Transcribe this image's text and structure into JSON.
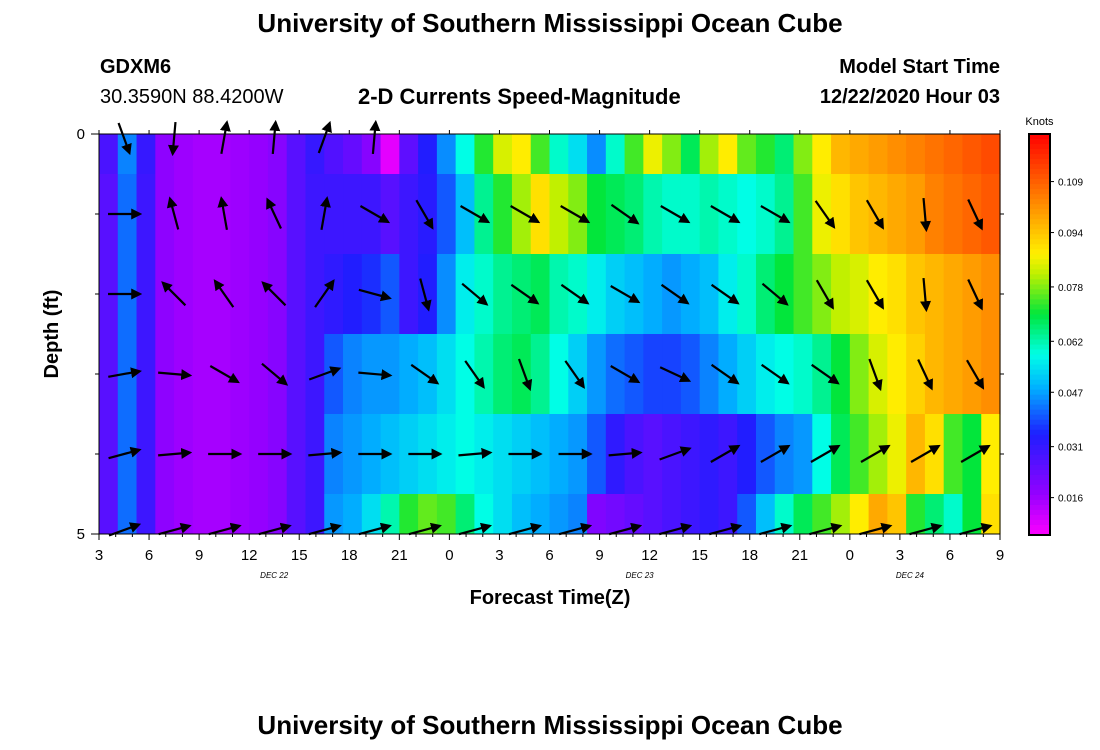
{
  "header": {
    "title": "University of Southern Mississippi Ocean Cube",
    "station": "GDXM6",
    "location": "30.3590N 88.4200W",
    "plot_title": "2-D Currents Speed-Magnitude",
    "model_label": "Model Start Time",
    "model_time": "12/22/2020 Hour 03"
  },
  "footer": {
    "title": "University of Southern Mississippi Ocean Cube"
  },
  "chart_data": {
    "type": "heatmap",
    "title": "2-D Currents Speed-Magnitude",
    "xlabel": "Forecast Time(Z)",
    "ylabel": "Depth (ft)",
    "x_ticks": [
      "3",
      "6",
      "9",
      "12",
      "15",
      "18",
      "21",
      "0",
      "3",
      "6",
      "9",
      "12",
      "15",
      "18",
      "21",
      "0",
      "3",
      "6",
      "9"
    ],
    "date_labels": [
      {
        "label": "DEC 22",
        "at_tick": 3.5
      },
      {
        "label": "DEC 23",
        "at_tick": 10.8
      },
      {
        "label": "DEC 24",
        "at_tick": 16.2
      }
    ],
    "y_ticks": [
      "0",
      "5"
    ],
    "ylim": [
      0,
      5
    ],
    "colorbar": {
      "unit": "Knots",
      "ticks": [
        0.016,
        0.031,
        0.047,
        0.062,
        0.078,
        0.094,
        0.109
      ],
      "range": [
        0.005,
        0.123
      ]
    },
    "bands": [
      {
        "depth": [
          0.0,
          0.5
        ],
        "speeds": [
          0.028,
          0.044,
          0.031,
          0.018,
          0.016,
          0.015,
          0.015,
          0.016,
          0.017,
          0.019,
          0.026,
          0.031,
          0.027,
          0.024,
          0.019,
          0.008,
          0.025,
          0.034,
          0.045,
          0.058,
          0.072,
          0.084,
          0.088,
          0.074,
          0.06,
          0.054,
          0.045,
          0.06,
          0.074,
          0.086,
          0.078,
          0.068,
          0.08,
          0.088,
          0.076,
          0.072,
          0.066,
          0.078,
          0.088,
          0.096,
          0.098,
          0.1,
          0.102,
          0.104,
          0.106,
          0.108,
          0.11,
          0.112
        ]
      },
      {
        "depth": [
          0.5,
          1.5
        ],
        "speeds": [
          0.026,
          0.042,
          0.03,
          0.018,
          0.016,
          0.015,
          0.015,
          0.016,
          0.017,
          0.019,
          0.026,
          0.03,
          0.03,
          0.03,
          0.03,
          0.026,
          0.03,
          0.033,
          0.04,
          0.05,
          0.064,
          0.072,
          0.08,
          0.09,
          0.082,
          0.078,
          0.07,
          0.068,
          0.066,
          0.062,
          0.06,
          0.06,
          0.062,
          0.06,
          0.058,
          0.06,
          0.064,
          0.074,
          0.086,
          0.09,
          0.094,
          0.096,
          0.098,
          0.1,
          0.104,
          0.106,
          0.108,
          0.11
        ]
      },
      {
        "depth": [
          1.5,
          2.5
        ],
        "speeds": [
          0.026,
          0.042,
          0.03,
          0.018,
          0.016,
          0.015,
          0.015,
          0.016,
          0.017,
          0.019,
          0.026,
          0.03,
          0.032,
          0.034,
          0.036,
          0.04,
          0.03,
          0.034,
          0.045,
          0.056,
          0.06,
          0.064,
          0.066,
          0.068,
          0.062,
          0.06,
          0.056,
          0.052,
          0.05,
          0.048,
          0.046,
          0.048,
          0.05,
          0.056,
          0.06,
          0.066,
          0.07,
          0.074,
          0.078,
          0.082,
          0.084,
          0.088,
          0.09,
          0.094,
          0.096,
          0.098,
          0.1,
          0.102
        ]
      },
      {
        "depth": [
          2.5,
          3.5
        ],
        "speeds": [
          0.026,
          0.042,
          0.03,
          0.018,
          0.016,
          0.015,
          0.015,
          0.016,
          0.017,
          0.019,
          0.026,
          0.03,
          0.04,
          0.044,
          0.046,
          0.046,
          0.048,
          0.05,
          0.054,
          0.058,
          0.062,
          0.066,
          0.068,
          0.064,
          0.058,
          0.052,
          0.046,
          0.042,
          0.04,
          0.038,
          0.038,
          0.04,
          0.044,
          0.048,
          0.052,
          0.056,
          0.058,
          0.06,
          0.064,
          0.07,
          0.078,
          0.084,
          0.088,
          0.092,
          0.096,
          0.098,
          0.1,
          0.102
        ]
      },
      {
        "depth": [
          3.5,
          4.5
        ],
        "speeds": [
          0.026,
          0.042,
          0.03,
          0.018,
          0.016,
          0.015,
          0.015,
          0.016,
          0.017,
          0.019,
          0.026,
          0.03,
          0.044,
          0.046,
          0.048,
          0.05,
          0.052,
          0.054,
          0.056,
          0.058,
          0.056,
          0.054,
          0.052,
          0.05,
          0.048,
          0.046,
          0.04,
          0.032,
          0.028,
          0.026,
          0.028,
          0.03,
          0.032,
          0.03,
          0.034,
          0.04,
          0.044,
          0.046,
          0.058,
          0.068,
          0.074,
          0.08,
          0.086,
          0.096,
          0.09,
          0.074,
          0.07,
          0.088
        ]
      },
      {
        "depth": [
          4.5,
          5.0
        ],
        "speeds": [
          0.026,
          0.042,
          0.03,
          0.018,
          0.016,
          0.015,
          0.015,
          0.016,
          0.017,
          0.019,
          0.026,
          0.03,
          0.046,
          0.048,
          0.054,
          0.062,
          0.072,
          0.076,
          0.074,
          0.066,
          0.058,
          0.054,
          0.05,
          0.048,
          0.046,
          0.044,
          0.02,
          0.022,
          0.024,
          0.026,
          0.028,
          0.03,
          0.032,
          0.03,
          0.04,
          0.05,
          0.06,
          0.068,
          0.074,
          0.08,
          0.088,
          0.098,
          0.094,
          0.072,
          0.066,
          0.06,
          0.07,
          0.09
        ]
      }
    ],
    "vectors": [
      {
        "depth": 0.0,
        "angles": [
          290,
          265,
          80,
          85,
          70,
          85,
          null,
          null,
          null,
          null,
          null,
          null,
          null,
          null,
          null,
          null,
          null,
          null
        ]
      },
      {
        "depth": 1.0,
        "angles": [
          0,
          105,
          100,
          115,
          80,
          330,
          300,
          330,
          330,
          330,
          325,
          330,
          330,
          330,
          305,
          300,
          275,
          295
        ]
      },
      {
        "depth": 2.0,
        "angles": [
          0,
          135,
          125,
          135,
          55,
          345,
          285,
          320,
          325,
          325,
          330,
          325,
          325,
          320,
          300,
          300,
          275,
          295
        ]
      },
      {
        "depth": 3.0,
        "angles": [
          10,
          355,
          330,
          320,
          20,
          355,
          325,
          305,
          290,
          305,
          330,
          335,
          325,
          325,
          325,
          290,
          295,
          300
        ]
      },
      {
        "depth": 4.0,
        "angles": [
          15,
          5,
          0,
          0,
          5,
          0,
          0,
          5,
          0,
          0,
          5,
          20,
          30,
          30,
          30,
          30,
          30,
          30
        ]
      },
      {
        "depth": 5.0,
        "angles": [
          20,
          15,
          15,
          15,
          15,
          15,
          15,
          15,
          15,
          15,
          15,
          15,
          15,
          15,
          15,
          15,
          15,
          15
        ]
      }
    ]
  }
}
